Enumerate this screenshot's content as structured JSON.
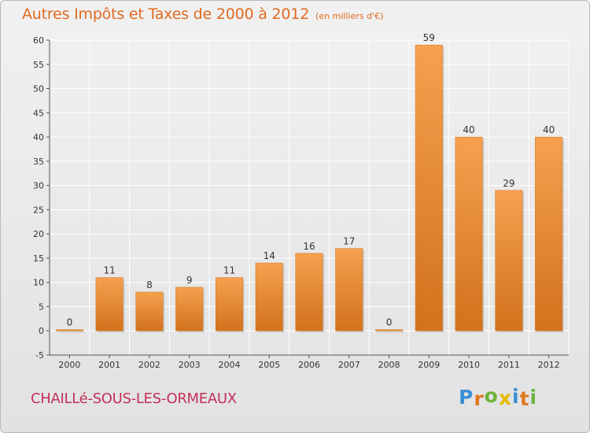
{
  "header": {
    "title": "Autres Impôts et Taxes de 2000 à 2012",
    "unit": "(en milliers d'€)"
  },
  "footer": {
    "commune": "CHAILLé-SOUS-LES-ORMEAUX",
    "brand": "Proxiti"
  },
  "colors": {
    "title": "#e06a20",
    "commune": "#c2305a",
    "bar_light": "#f5a14f",
    "bar_dark": "#d2721c",
    "grid": "#ffffff",
    "brand_letters": [
      "#3a8fd6",
      "#e07820",
      "#6cb33f",
      "#e6b800",
      "#3a8fd6",
      "#e07820",
      "#6cb33f"
    ]
  },
  "chart_data": {
    "type": "bar",
    "title": "Autres Impôts et Taxes de 2000 à 2012",
    "subtitle": "(en milliers d'€)",
    "xlabel": "",
    "ylabel": "",
    "categories": [
      "2000",
      "2001",
      "2002",
      "2003",
      "2004",
      "2005",
      "2006",
      "2007",
      "2008",
      "2009",
      "2010",
      "2011",
      "2012"
    ],
    "values": [
      0,
      11,
      8,
      9,
      11,
      14,
      16,
      17,
      0,
      59,
      40,
      29,
      40
    ],
    "ylim": [
      -5,
      60
    ],
    "yticks": [
      -5,
      0,
      5,
      10,
      15,
      20,
      25,
      30,
      35,
      40,
      45,
      50,
      55,
      60
    ],
    "grid": "horizontal",
    "legend": "none",
    "data_labels": true
  }
}
